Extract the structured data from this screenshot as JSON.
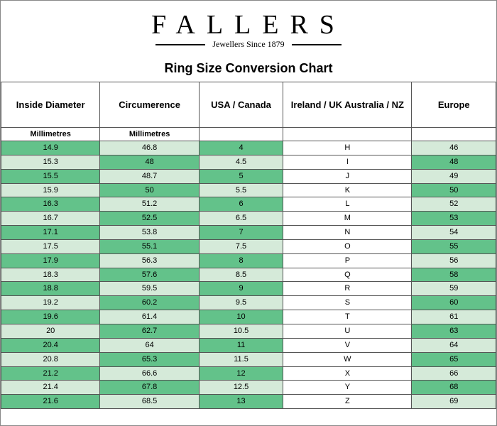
{
  "brand": {
    "name": "FALLERS",
    "subtitle": "Jewellers Since 1879"
  },
  "chart_title": "Ring Size Conversion Chart",
  "columns": [
    {
      "label": "Inside Diameter",
      "unit": "Millimetres"
    },
    {
      "label": "Circumerence",
      "unit": "Millimetres"
    },
    {
      "label": "USA / Canada",
      "unit": ""
    },
    {
      "label": "Ireland / UK  Australia / NZ",
      "unit": ""
    },
    {
      "label": "Europe",
      "unit": ""
    }
  ],
  "col_widths": [
    "20%",
    "20%",
    "17%",
    "26%",
    "17%"
  ],
  "colors": {
    "dark": "#63c28a",
    "light": "#d5ead9",
    "white": "#ffffff",
    "border": "#555555"
  },
  "shade_pattern": {
    "comment": "per column: even-row-shade, odd-row-shade",
    "cols": [
      {
        "even": "c-dark",
        "odd": "c-light"
      },
      {
        "even": "c-light",
        "odd": "c-dark"
      },
      {
        "even": "c-dark",
        "odd": "c-light"
      },
      {
        "even": "c-white",
        "odd": "c-white"
      },
      {
        "even": "c-light",
        "odd": "c-dark"
      }
    ]
  },
  "rows": [
    [
      "14.9",
      "46.8",
      "4",
      "H",
      "46"
    ],
    [
      "15.3",
      "48",
      "4.5",
      "I",
      "48"
    ],
    [
      "15.5",
      "48.7",
      "5",
      "J",
      "49"
    ],
    [
      "15.9",
      "50",
      "5.5",
      "K",
      "50"
    ],
    [
      "16.3",
      "51.2",
      "6",
      "L",
      "52"
    ],
    [
      "16.7",
      "52.5",
      "6.5",
      "M",
      "53"
    ],
    [
      "17.1",
      "53.8",
      "7",
      "N",
      "54"
    ],
    [
      "17.5",
      "55.1",
      "7.5",
      "O",
      "55"
    ],
    [
      "17.9",
      "56.3",
      "8",
      "P",
      "56"
    ],
    [
      "18.3",
      "57.6",
      "8.5",
      "Q",
      "58"
    ],
    [
      "18.8",
      "59.5",
      "9",
      "R",
      "59"
    ],
    [
      "19.2",
      "60.2",
      "9.5",
      "S",
      "60"
    ],
    [
      "19.6",
      "61.4",
      "10",
      "T",
      "61"
    ],
    [
      "20",
      "62.7",
      "10.5",
      "U",
      "63"
    ],
    [
      "20.4",
      "64",
      "11",
      "V",
      "64"
    ],
    [
      "20.8",
      "65.3",
      "11.5",
      "W",
      "65"
    ],
    [
      "21.2",
      "66.6",
      "12",
      "X",
      "66"
    ],
    [
      "21.4",
      "67.8",
      "12.5",
      "Y",
      "68"
    ],
    [
      "21.6",
      "68.5",
      "13",
      "Z",
      "69"
    ]
  ]
}
